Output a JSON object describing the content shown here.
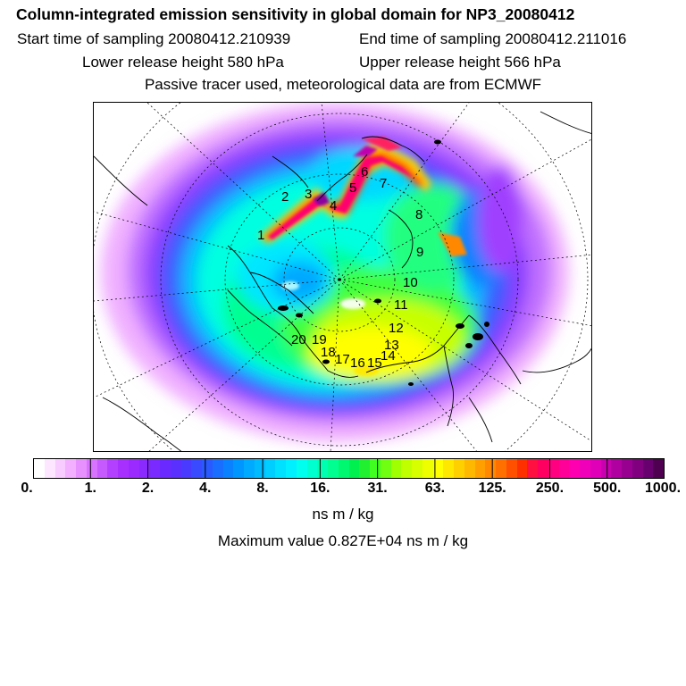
{
  "header": {
    "title": "Column-integrated emission sensitivity in global domain for NP3_20080412",
    "start_time": "Start time of sampling 20080412.210939",
    "end_time": "End time of sampling 20080412.211016",
    "lower_height": "Lower release height  580 hPa",
    "upper_height": "Upper release height  566 hPa",
    "tracer_note": "Passive tracer used, meteorological data are from ECMWF"
  },
  "map": {
    "track_points": [
      {
        "label": "1"
      },
      {
        "label": "2"
      },
      {
        "label": "3"
      },
      {
        "label": "4"
      },
      {
        "label": "5"
      },
      {
        "label": "6"
      },
      {
        "label": "7"
      },
      {
        "label": "8"
      },
      {
        "label": "9"
      },
      {
        "label": "10"
      },
      {
        "label": "11"
      },
      {
        "label": "12"
      },
      {
        "label": "13"
      },
      {
        "label": "14"
      },
      {
        "label": "15"
      },
      {
        "label": "16"
      },
      {
        "label": "17"
      },
      {
        "label": "18"
      },
      {
        "label": "19"
      },
      {
        "label": "20"
      }
    ],
    "track_color": "#e8004a"
  },
  "colorbar": {
    "tick_labels": [
      "0.",
      "1.",
      "2.",
      "4.",
      "8.",
      "16.",
      "31.",
      "63.",
      "125.",
      "250.",
      "500.",
      "1000."
    ],
    "colors": [
      "#ffffff",
      "#fde6ff",
      "#f8ccff",
      "#f2b0ff",
      "#e791ff",
      "#d873ff",
      "#c75aff",
      "#b440ff",
      "#a830ff",
      "#9a2aff",
      "#8a2aff",
      "#7a2aff",
      "#6a2aff",
      "#5a30ff",
      "#4a3aff",
      "#3a4aff",
      "#2a5aff",
      "#1a6eff",
      "#0a82ff",
      "#0096ff",
      "#00aaff",
      "#00bcff",
      "#00ceff",
      "#00e0ff",
      "#00f0ff",
      "#00ffee",
      "#00ffd0",
      "#00ffb0",
      "#00ff90",
      "#00f870",
      "#00f050",
      "#20f030",
      "#40ff20",
      "#70ff10",
      "#a0ff00",
      "#c0ff00",
      "#d8ff00",
      "#eeff00",
      "#ffff00",
      "#ffe800",
      "#ffd000",
      "#ffb800",
      "#ffa000",
      "#ff8800",
      "#ff7000",
      "#ff5000",
      "#ff3000",
      "#ff1040",
      "#ff0060",
      "#ff0080",
      "#ff0098",
      "#ff00b0",
      "#f000b8",
      "#e000b8",
      "#c800b0",
      "#b000a0",
      "#980090",
      "#800080",
      "#680070",
      "#500050"
    ],
    "units": "ns m / kg",
    "max_value": "Maximum value  0.827E+04 ns m / kg"
  }
}
